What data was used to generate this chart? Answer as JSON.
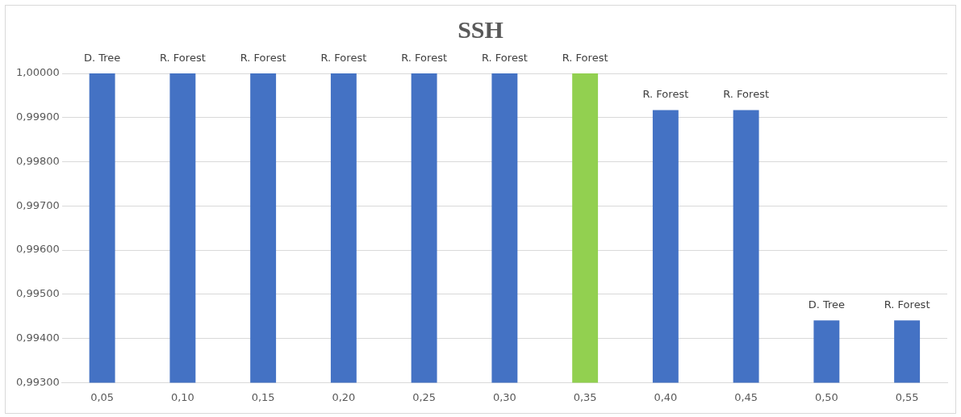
{
  "chart_data": {
    "type": "bar",
    "title": "SSH",
    "categories": [
      "0,05",
      "0,10",
      "0,15",
      "0,20",
      "0,25",
      "0,30",
      "0,35",
      "0,40",
      "0,45",
      "0,50",
      "0,55"
    ],
    "values": [
      1,
      1,
      1,
      1,
      1,
      1,
      1,
      0.99917,
      0.99917,
      0.99441,
      0.99441
    ],
    "colors": [
      "#4472c4",
      "#4472c4",
      "#4472c4",
      "#4472c4",
      "#4472c4",
      "#4472c4",
      "#92d050",
      "#4472c4",
      "#4472c4",
      "#4472c4",
      "#4472c4"
    ],
    "value_labels": [
      "D. Tree",
      "R. Forest",
      "R. Forest",
      "R. Forest",
      "R. Forest",
      "R. Forest",
      "R. Forest",
      "R. Forest",
      "R. Forest",
      "D. Tree",
      "R. Forest"
    ],
    "ylim": [
      0.993,
      1
    ],
    "yticks": [
      {
        "value": 0.993,
        "label": "0,99300"
      },
      {
        "value": 0.994,
        "label": "0,99400"
      },
      {
        "value": 0.995,
        "label": "0,99500"
      },
      {
        "value": 0.996,
        "label": "0,99600"
      },
      {
        "value": 0.997,
        "label": "0,99700"
      },
      {
        "value": 0.998,
        "label": "0,99800"
      },
      {
        "value": 0.999,
        "label": "0,99900"
      },
      {
        "value": 1,
        "label": "1,00000"
      }
    ],
    "grid": "y"
  }
}
